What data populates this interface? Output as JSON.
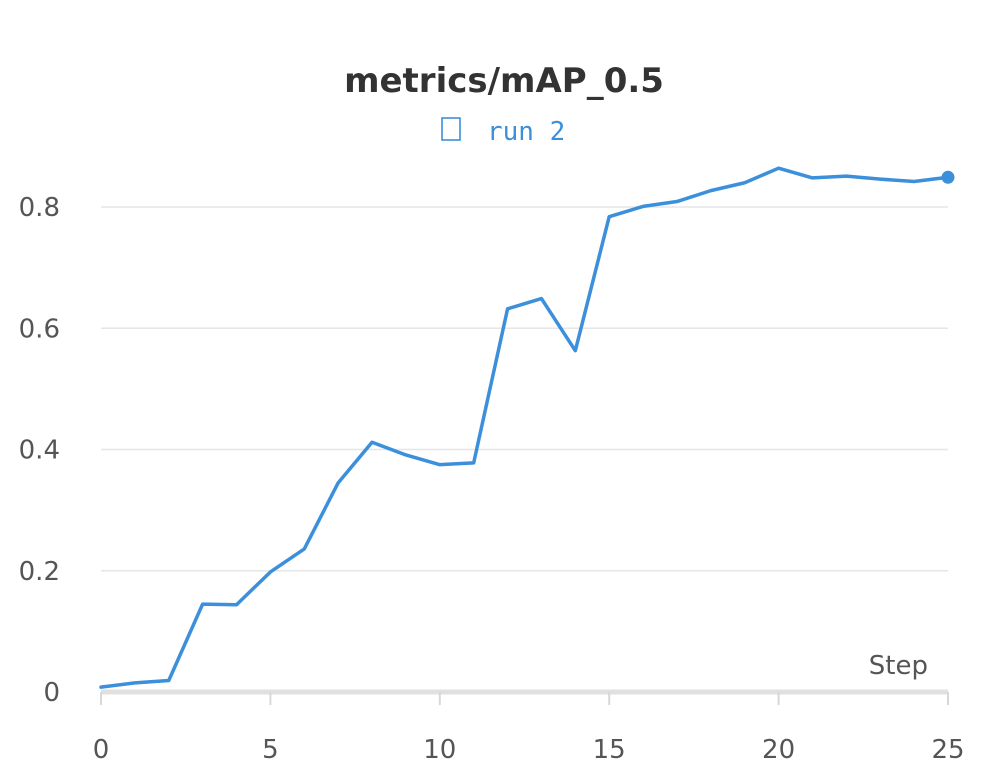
{
  "chart_data": {
    "type": "line",
    "title": "metrics/mAP_0.5",
    "xlabel": "Step",
    "ylabel": "",
    "xlim": [
      0,
      25
    ],
    "ylim": [
      0,
      0.9
    ],
    "xticks": [
      "0",
      "5",
      "10",
      "15",
      "20",
      "25"
    ],
    "yticks": [
      "0",
      "0.2",
      "0.4",
      "0.6",
      "0.8"
    ],
    "grid": "horizontal",
    "legend_position": "top-center",
    "series": [
      {
        "name": "run 2",
        "color": "#3c8fdb",
        "x": [
          0,
          1,
          2,
          3,
          4,
          5,
          6,
          7,
          8,
          9,
          10,
          11,
          12,
          13,
          14,
          15,
          16,
          17,
          18,
          19,
          20,
          21,
          22,
          23,
          24,
          25
        ],
        "y": [
          0.008,
          0.015,
          0.019,
          0.145,
          0.144,
          0.198,
          0.236,
          0.345,
          0.412,
          0.391,
          0.375,
          0.378,
          0.632,
          0.649,
          0.563,
          0.784,
          0.801,
          0.809,
          0.827,
          0.84,
          0.864,
          0.848,
          0.851,
          0.846,
          0.842,
          0.849
        ]
      }
    ]
  },
  "legend": {
    "icon": "square-icon",
    "label": "run 2"
  }
}
